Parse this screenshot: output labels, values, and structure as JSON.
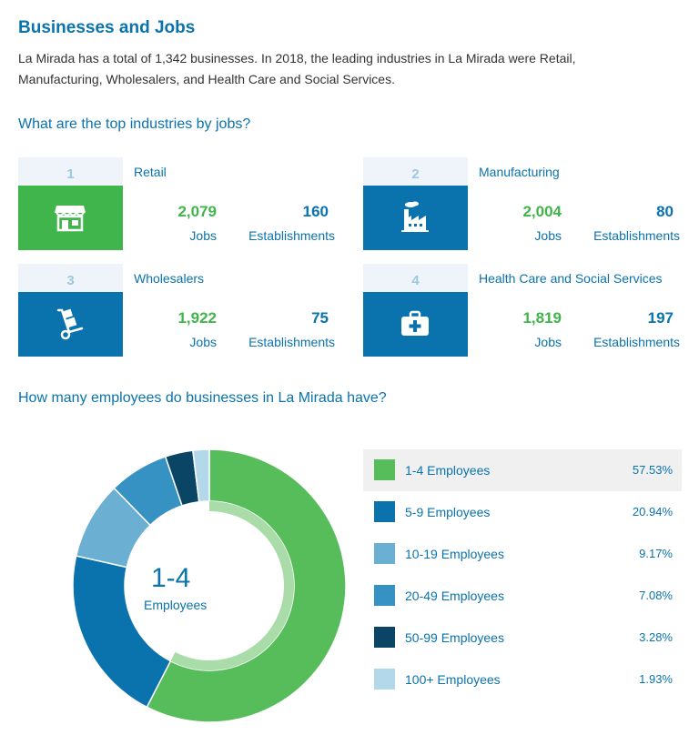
{
  "header": {
    "title": "Businesses and Jobs",
    "intro": "La Mirada has a total of 1,342 businesses. In 2018, the leading industries in La Mirada were Retail, Manufacturing, Wholesalers, and Health Care and Social Services."
  },
  "industries": {
    "question": "What are the top industries by jobs?",
    "jobs_label": "Jobs",
    "est_label": "Establishments",
    "items": [
      {
        "rank": "1",
        "name": "Retail",
        "jobs": "2,079",
        "establishments": "160",
        "icon": "storefront-icon",
        "color": "#3fb54b"
      },
      {
        "rank": "2",
        "name": "Manufacturing",
        "jobs": "2,004",
        "establishments": "80",
        "icon": "factory-icon",
        "color": "#0a73ad"
      },
      {
        "rank": "3",
        "name": "Wholesalers",
        "jobs": "1,922",
        "establishments": "75",
        "icon": "hand-truck-icon",
        "color": "#0a73ad"
      },
      {
        "rank": "4",
        "name": "Health Care and Social Services",
        "jobs": "1,819",
        "establishments": "197",
        "icon": "medical-kit-icon",
        "color": "#0a73ad"
      }
    ]
  },
  "employees": {
    "question": "How many employees do businesses in La Mirada have?",
    "center_value": "1-4",
    "center_label": "Employees"
  },
  "chart_data": {
    "type": "pie",
    "donut": true,
    "legend_position": "right",
    "selected": "1-4 Employees",
    "slices": [
      {
        "label": "1-4 Employees",
        "value": 57.53,
        "display": "57.53%",
        "color": "#57bd5b"
      },
      {
        "label": "5-9 Employees",
        "value": 20.94,
        "display": "20.94%",
        "color": "#0a73ad"
      },
      {
        "label": "10-19 Employees",
        "value": 9.17,
        "display": "9.17%",
        "color": "#6bafd2"
      },
      {
        "label": "20-49 Employees",
        "value": 7.08,
        "display": "7.08%",
        "color": "#3792c4"
      },
      {
        "label": "50-99 Employees",
        "value": 3.28,
        "display": "3.28%",
        "color": "#0b4566"
      },
      {
        "label": "100+ Employees",
        "value": 1.93,
        "display": "1.93%",
        "color": "#b3d8ea"
      }
    ]
  }
}
